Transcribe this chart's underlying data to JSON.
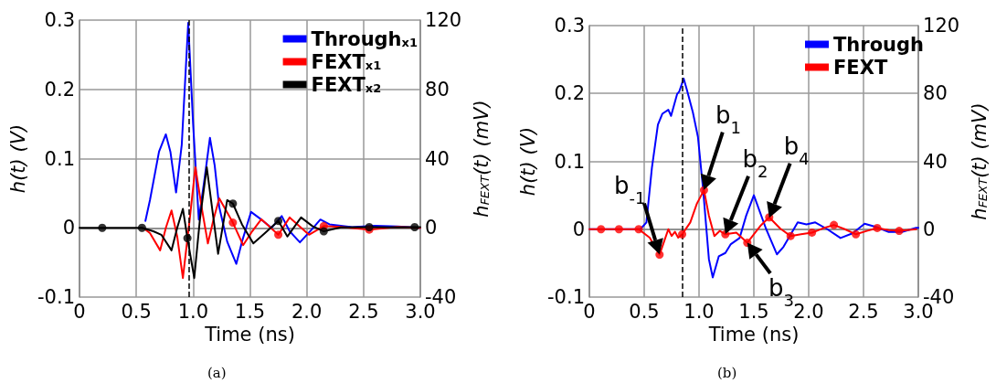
{
  "chart_data": [
    {
      "type": "line",
      "xlabel": "Time (ns)",
      "ylabel": "h(t) (V)",
      "y2label": "h$_{FEXT}$(t) (mV)",
      "xlim": [
        0,
        3
      ],
      "xticks": [
        0,
        0.5,
        {
          "value": 1,
          "label": "1.0"
        },
        1.5,
        {
          "value": 2,
          "label": "2.0"
        },
        2.5,
        {
          "value": 3,
          "label": "3.0"
        }
      ],
      "ylim": [
        -0.1,
        0.3
      ],
      "yticks": [
        -0.1,
        0,
        0.1,
        0.2,
        0.3
      ],
      "y2lim": [
        -40,
        120
      ],
      "y2ticks": [
        -40,
        0,
        40,
        80,
        120
      ],
      "grid": true,
      "legend": "top right",
      "series": [
        {
          "name": "Through$_{x1}$",
          "color": "#0000ff",
          "marker": "none",
          "x": [
            0.58,
            0.62,
            0.7,
            0.76,
            0.8,
            0.85,
            0.9,
            0.957,
            1.0,
            1.05,
            1.1,
            1.148,
            1.19,
            1.23,
            1.3,
            1.38,
            1.43,
            1.51,
            1.6,
            1.69,
            1.78,
            1.85,
            1.94,
            2.03,
            2.12,
            2.2,
            2.4,
            2.6,
            2.8,
            3.0
          ],
          "values": [
            0.01,
            0.04,
            0.11,
            0.135,
            0.11,
            0.051,
            0.12,
            0.296,
            0.15,
            0.012,
            0.07,
            0.13,
            0.09,
            0.03,
            -0.02,
            -0.052,
            -0.02,
            0.023,
            0.012,
            0,
            0.017,
            -0.005,
            -0.021,
            -0.005,
            0.012,
            0.005,
            0.001,
            0.003,
            0.002,
            0
          ]
        },
        {
          "name": "FEXT$_{x1}$",
          "color": "#ff0000",
          "marker": "none",
          "axis": "y2",
          "x": [
            0.58,
            0.62,
            0.71,
            0.76,
            0.81,
            0.86,
            0.91,
            0.97,
            1.02,
            1.08,
            1.13,
            1.18,
            1.23,
            1.35,
            1.44,
            1.52,
            1.6,
            1.75,
            1.85,
            2.02,
            2.15,
            2.3,
            2.55,
            2.8,
            3.0
          ],
          "values": [
            -1,
            -3,
            -13,
            0,
            10,
            -5,
            -29,
            5,
            35,
            10,
            -9,
            5,
            17,
            3,
            -10,
            -2,
            5,
            -4,
            6,
            -4,
            1,
            0.5,
            -1,
            0.5,
            0
          ]
        },
        {
          "name": "FEXT$_{x2}$",
          "color": "#000000",
          "marker": "none",
          "axis": "y2",
          "x": [
            0,
            0.5,
            0.55,
            0.65,
            0.72,
            0.81,
            0.86,
            0.91,
            0.95,
            1.01,
            1.06,
            1.12,
            1.17,
            1.22,
            1.3,
            1.35,
            1.43,
            1.53,
            1.65,
            1.75,
            1.83,
            1.95,
            2.05,
            2.15,
            2.3,
            2.55,
            2.8,
            2.95,
            3.0
          ],
          "values": [
            0,
            0,
            0,
            -2,
            -4,
            -13,
            0,
            11,
            -6,
            -29,
            5,
            35,
            10,
            -15,
            16,
            14,
            2,
            -9,
            -2,
            4,
            -5,
            6,
            1,
            -2,
            0.3,
            0.4,
            0.3,
            0.4,
            0.4
          ]
        },
        {
          "type": "scatter",
          "color": "#ff0000",
          "marker": "circle",
          "axis": "y2",
          "x": [
            1.35,
            1.75,
            2.15,
            2.55
          ],
          "values": [
            3,
            -4,
            1,
            -1
          ]
        },
        {
          "type": "scatter",
          "color": "#000000",
          "marker": "circle",
          "axis": "y2",
          "x": [
            0.2,
            0.55,
            0.95,
            1.35,
            1.75,
            2.15,
            2.55,
            2.95
          ],
          "values": [
            0,
            0,
            -6,
            14,
            4,
            -2,
            0.4,
            0.4
          ]
        }
      ],
      "ref_lines": [
        {
          "axis": "x",
          "value": 0.96,
          "color": "#000000",
          "line_style": "dashed"
        }
      ],
      "annotations": [
        "(a)"
      ]
    },
    {
      "type": "line",
      "xlabel": "Time (ns)",
      "ylabel": "h(t) (V)",
      "y2label": "h$_{FEXT}$(t) (mV)",
      "xlim": [
        0,
        3
      ],
      "xticks": [
        0,
        0.5,
        {
          "value": 1,
          "label": "1.0"
        },
        1.5,
        {
          "value": 2,
          "label": "2.0"
        },
        2.5,
        {
          "value": 3,
          "label": "3.0"
        }
      ],
      "ylim": [
        -0.1,
        0.3
      ],
      "yticks": [
        -0.1,
        0,
        0.1,
        0.2,
        0.3
      ],
      "y2lim": [
        -40,
        120
      ],
      "y2ticks": [
        -40,
        0,
        40,
        80,
        120
      ],
      "grid": true,
      "legend": "top right",
      "series": [
        {
          "name": "Through",
          "color": "#0000ff",
          "marker": "none",
          "x": [
            0,
            0.3,
            0.465,
            0.52,
            0.57,
            0.625,
            0.665,
            0.72,
            0.745,
            0.8,
            0.82,
            0.86,
            0.89,
            0.944,
            0.99,
            1.037,
            1.09,
            1.125,
            1.18,
            1.24,
            1.29,
            1.37,
            1.43,
            1.5,
            1.61,
            1.71,
            1.77,
            1.9,
            1.98,
            2.06,
            2.17,
            2.29,
            2.4,
            2.51,
            2.62,
            2.73,
            2.85,
            2.98,
            3.0
          ],
          "values": [
            0,
            0,
            0,
            0.01,
            0.09,
            0.154,
            0.17,
            0.176,
            0.167,
            0.199,
            0.203,
            0.222,
            0.205,
            0.172,
            0.136,
            0.059,
            -0.044,
            -0.071,
            -0.04,
            -0.035,
            -0.022,
            -0.013,
            0.02,
            0.05,
            0.001,
            -0.037,
            -0.026,
            0.01,
            0.007,
            0.01,
            0,
            -0.013,
            -0.006,
            0.008,
            0.003,
            -0.004,
            -0.004,
            0.002,
            0.002
          ]
        },
        {
          "name": "FEXT",
          "color": "#ff0000",
          "marker": "none",
          "axis": "y2",
          "x": [
            0,
            0.106,
            0.27,
            0.45,
            0.55,
            0.64,
            0.72,
            0.75,
            0.78,
            0.81,
            0.846,
            0.92,
            0.98,
            1.045,
            1.09,
            1.14,
            1.19,
            1.24,
            1.34,
            1.44,
            1.56,
            1.64,
            1.74,
            1.835,
            1.93,
            2.03,
            2.13,
            2.23,
            2.33,
            2.43,
            2.53,
            2.625,
            2.73,
            2.825,
            2.98
          ],
          "values": [
            0,
            0,
            0,
            0,
            -5,
            -15,
            0,
            -4,
            -1.5,
            -5,
            -3,
            4,
            15,
            23,
            8,
            -4,
            -1,
            -3,
            -2,
            -8,
            2,
            7,
            0.4,
            -4,
            -3,
            -2,
            0.5,
            2.5,
            0,
            -3,
            -1,
            0.7,
            -0.5,
            -1,
            0
          ]
        },
        {
          "type": "scatter",
          "color": "#ff0000",
          "marker": "circle",
          "axis": "y2",
          "x": [
            0.106,
            0.27,
            0.45,
            0.64,
            0.846,
            1.045,
            1.24,
            1.44,
            1.64,
            1.835,
            2.03,
            2.23,
            2.43,
            2.625,
            2.825
          ],
          "values": [
            0,
            0,
            0,
            -15,
            -3,
            23,
            -3,
            -8,
            7,
            -4,
            -2,
            2.5,
            -3,
            0.7,
            -1
          ]
        }
      ],
      "ref_lines": [
        {
          "axis": "x",
          "value": 0.85,
          "color": "#000000",
          "line_style": "dashed"
        }
      ],
      "annotations": [
        {
          "text": "b$_{-1}$",
          "x": 0.64,
          "y": -0.037
        },
        {
          "text": "b$_{1}$",
          "x": 1.045,
          "y": 0.058
        },
        {
          "text": "b$_{2}$",
          "x": 1.24,
          "y": -0.007
        },
        {
          "text": "b$_{3}$",
          "x": 1.44,
          "y": -0.02
        },
        {
          "text": "b$_{4}$",
          "x": 1.64,
          "y": 0.017
        },
        "(b)"
      ]
    }
  ]
}
